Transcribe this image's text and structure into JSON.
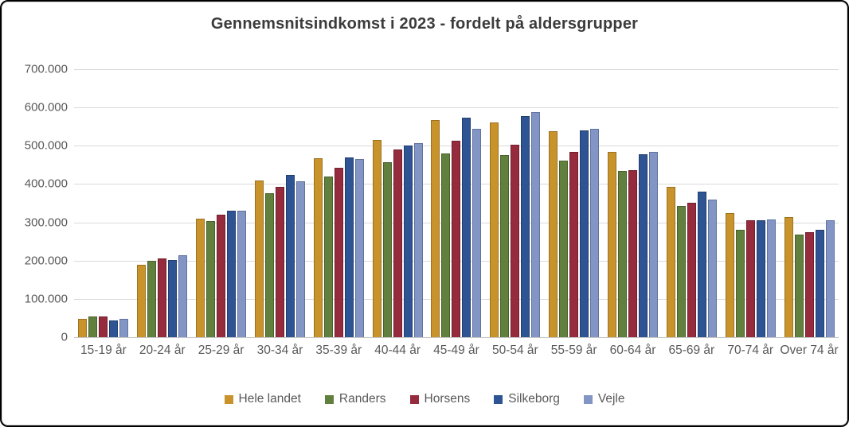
{
  "chart_data": {
    "type": "bar",
    "title": "Gennemsnitsindkomst i 2023 - fordelt på aldersgrupper",
    "xlabel": "",
    "ylabel": "",
    "ylim": [
      0,
      700000
    ],
    "grid": true,
    "legend_position": "bottom",
    "y_tick_labels": [
      "700.000",
      "600.000",
      "500.000",
      "400.000",
      "300.000",
      "200.000",
      "100.000",
      "0"
    ],
    "categories": [
      "15-19 år",
      "20-24 år",
      "25-29 år",
      "30-34 år",
      "35-39 år",
      "40-44 år",
      "45-49 år",
      "50-54 år",
      "55-59 år",
      "60-64 år",
      "65-69 år",
      "70-74 år",
      "Over 74 år"
    ],
    "series": [
      {
        "name": "Hele landet",
        "color": "#C9932C",
        "border_color": "#9C711F",
        "values": [
          48000,
          190000,
          310000,
          410000,
          467000,
          515000,
          567000,
          560000,
          537000,
          483000,
          393000,
          324000,
          314000
        ]
      },
      {
        "name": "Randers",
        "color": "#62803D",
        "border_color": "#49612C",
        "values": [
          53000,
          200000,
          303000,
          375000,
          420000,
          458000,
          480000,
          476000,
          462000,
          434000,
          343000,
          280000,
          267000
        ]
      },
      {
        "name": "Horsens",
        "color": "#962B3D",
        "border_color": "#701F2D",
        "values": [
          54000,
          205000,
          320000,
          393000,
          443000,
          490000,
          514000,
          503000,
          483000,
          437000,
          351000,
          306000,
          274000
        ]
      },
      {
        "name": "Silkeborg",
        "color": "#2E5494",
        "border_color": "#213E6E",
        "values": [
          43000,
          202000,
          331000,
          424000,
          470000,
          500000,
          574000,
          577000,
          540000,
          477000,
          380000,
          306000,
          280000
        ]
      },
      {
        "name": "Vejle",
        "color": "#8395C5",
        "border_color": "#61739E",
        "values": [
          47000,
          215000,
          331000,
          408000,
          466000,
          506000,
          544000,
          588000,
          544000,
          483000,
          360000,
          307000,
          305000
        ]
      }
    ]
  },
  "styles": {
    "gridline_color": "#d9d9d9",
    "axis_text_color": "#595959",
    "title_color": "#3b3b3b",
    "background": "#ffffff"
  }
}
